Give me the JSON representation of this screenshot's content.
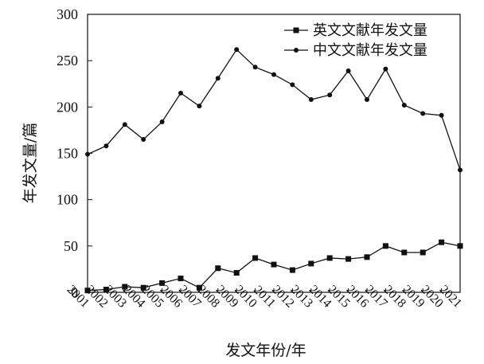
{
  "chart_data": {
    "type": "line",
    "x": [
      "2001",
      "2002",
      "2003",
      "2004",
      "2005",
      "2006",
      "2007",
      "2008",
      "2009",
      "2010",
      "2011",
      "2012",
      "2013",
      "2014",
      "2015",
      "2016",
      "2017",
      "2018",
      "2019",
      "2020",
      "2021"
    ],
    "series": [
      {
        "name": "英文文献年发文量",
        "marker": "square",
        "color": "#111111",
        "values": [
          2,
          3,
          6,
          5,
          10,
          15,
          5,
          26,
          21,
          37,
          30,
          24,
          31,
          37,
          36,
          38,
          50,
          43,
          43,
          54,
          50
        ]
      },
      {
        "name": "中文文献年发文量",
        "marker": "circle",
        "color": "#111111",
        "values": [
          149,
          158,
          181,
          165,
          184,
          215,
          201,
          231,
          262,
          243,
          235,
          224,
          208,
          213,
          239,
          208,
          241,
          202,
          193,
          191,
          132
        ]
      }
    ],
    "title": "",
    "xlabel": "发文年份/年",
    "ylabel": "年发文量/篇",
    "ylim": [
      0,
      300
    ],
    "yticks": [
      0,
      50,
      100,
      150,
      200,
      250,
      300
    ],
    "grid": false,
    "legend_position": "top-right"
  }
}
